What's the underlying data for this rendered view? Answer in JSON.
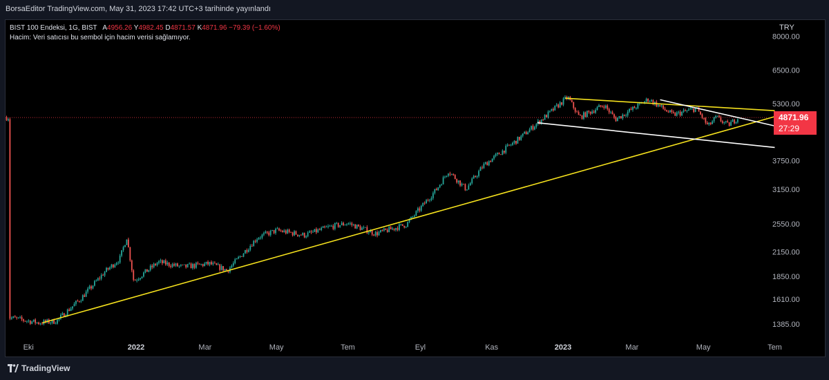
{
  "header": {
    "text": "BorsaEditor TradingView.com, May 31, 2023 17:42 UTC+3 tarihinde yayınlandı"
  },
  "legend": {
    "symbol": "BIST 100 Endeksi, 1G, BIST",
    "open_label": "A",
    "open": "4956.26",
    "high_label": "Y",
    "high": "4982.45",
    "low_label": "D",
    "low": "4871.57",
    "close_label": "K",
    "close": "4871.96",
    "change": "−79.39 (−1.60%)",
    "volume_note": "Hacim: Veri satıcısı bu sembol için hacim verisi sağlamıyor."
  },
  "currency": "TRY",
  "price_badge": {
    "price": "4871.96",
    "countdown": "27:29"
  },
  "footer": {
    "brand": "TradingView"
  },
  "colors": {
    "up": "#26a69a",
    "down": "#ef5350",
    "trend_yellow": "#f5e11d",
    "channel_white": "#ffffff",
    "badge": "#f23645"
  },
  "chart_data": {
    "type": "candlestick",
    "title": "BIST 100 Endeksi, 1G, BIST",
    "scale": "log",
    "ylim": [
      1300,
      8400
    ],
    "y_ticks": [
      "1385.00",
      "1610.00",
      "1850.00",
      "2150.00",
      "2550.00",
      "3150.00",
      "3750.00",
      "5300.00",
      "6500.00",
      "8000.00"
    ],
    "x_ticks": [
      {
        "label": "Eki",
        "bold": false
      },
      {
        "label": "2022",
        "bold": true
      },
      {
        "label": "Mar",
        "bold": false
      },
      {
        "label": "May",
        "bold": false
      },
      {
        "label": "Tem",
        "bold": false
      },
      {
        "label": "Eyl",
        "bold": false
      },
      {
        "label": "Kas",
        "bold": false
      },
      {
        "label": "2023",
        "bold": true
      },
      {
        "label": "Mar",
        "bold": false
      },
      {
        "label": "May",
        "bold": false
      },
      {
        "label": "Tem",
        "bold": false
      }
    ],
    "last_price": 4871.96,
    "path": [
      [
        "2021-09-15",
        1440
      ],
      [
        "2021-10-10",
        1395
      ],
      [
        "2021-10-25",
        1410
      ],
      [
        "2021-11-15",
        1620
      ],
      [
        "2021-12-05",
        1900
      ],
      [
        "2021-12-18",
        2060
      ],
      [
        "2021-12-24",
        2350
      ],
      [
        "2021-12-30",
        1800
      ],
      [
        "2022-01-20",
        2020
      ],
      [
        "2022-02-10",
        1960
      ],
      [
        "2022-03-05",
        2000
      ],
      [
        "2022-03-20",
        1920
      ],
      [
        "2022-04-15",
        2350
      ],
      [
        "2022-05-01",
        2450
      ],
      [
        "2022-05-25",
        2380
      ],
      [
        "2022-06-15",
        2500
      ],
      [
        "2022-07-01",
        2560
      ],
      [
        "2022-07-25",
        2400
      ],
      [
        "2022-08-20",
        2540
      ],
      [
        "2022-09-15",
        3150
      ],
      [
        "2022-09-25",
        3520
      ],
      [
        "2022-10-10",
        3150
      ],
      [
        "2022-10-25",
        3640
      ],
      [
        "2022-11-25",
        4300
      ],
      [
        "2022-12-20",
        5000
      ],
      [
        "2023-01-05",
        5520
      ],
      [
        "2023-01-15",
        4880
      ],
      [
        "2023-02-05",
        5260
      ],
      [
        "2023-02-15",
        4820
      ],
      [
        "2023-03-15",
        5450
      ],
      [
        "2023-04-05",
        4950
      ],
      [
        "2023-04-25",
        5150
      ],
      [
        "2023-05-05",
        4620
      ],
      [
        "2023-05-12",
        4880
      ],
      [
        "2023-05-22",
        4650
      ],
      [
        "2023-05-31",
        4871.96
      ]
    ],
    "trendlines": [
      {
        "color": "yellow",
        "from": [
          "2021-10-13",
          1395
        ],
        "to": [
          "2023-07-01",
          4900
        ]
      },
      {
        "color": "yellow",
        "from": [
          "2023-01-03",
          5480
        ],
        "to": [
          "2023-07-01",
          5080
        ]
      },
      {
        "color": "white",
        "from": [
          "2022-12-10",
          4720
        ],
        "to": [
          "2023-07-01",
          4060
        ]
      },
      {
        "color": "white",
        "from": [
          "2023-03-25",
          5430
        ],
        "to": [
          "2023-07-01",
          4630
        ]
      }
    ]
  }
}
